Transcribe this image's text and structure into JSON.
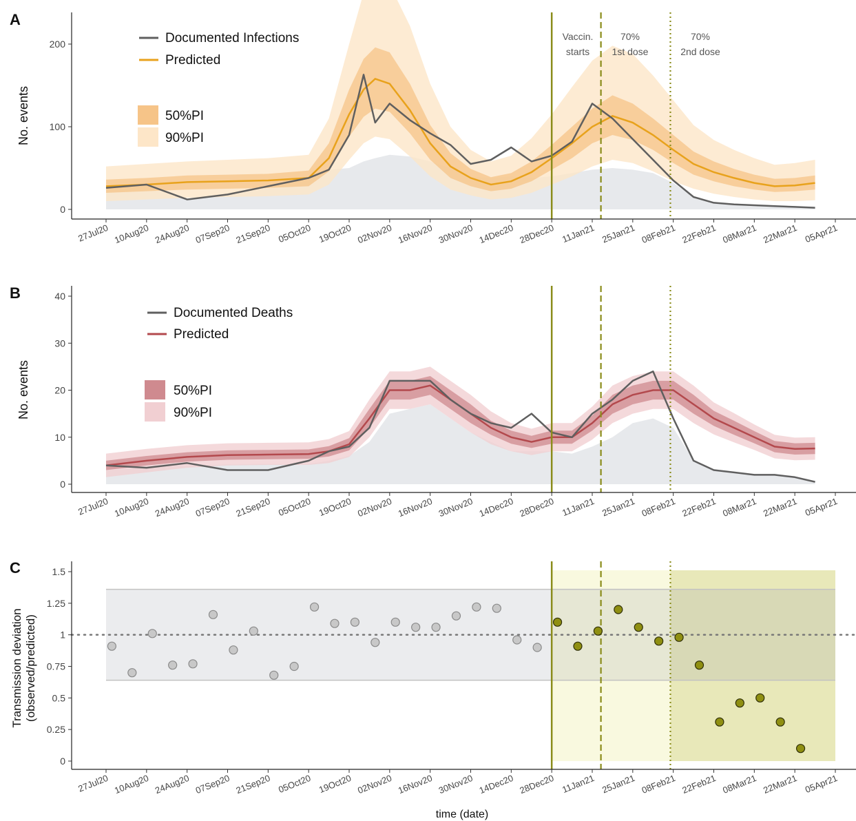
{
  "colors": {
    "observed": "#5f5f5f",
    "predicted_A": "#e8a21c",
    "pi50_A": "#f6c488",
    "pi90_A": "#fde6c8",
    "predicted_B": "#b3494d",
    "pi50_B": "#cf8a8f",
    "pi90_B": "#f1cfd2",
    "observed_area": "#e7e9ec",
    "vaccine": "#8a8c1a",
    "point_pre": "#c8c8c8",
    "point_post": "#8f8f12"
  },
  "x_axis": {
    "ticks": [
      "27Jul20",
      "10Aug20",
      "24Aug20",
      "07Sep20",
      "21Sep20",
      "05Oct20",
      "19Oct20",
      "02Nov20",
      "16Nov20",
      "30Nov20",
      "14Dec20",
      "28Dec20",
      "11Jan21",
      "25Jan21",
      "08Feb21",
      "22Feb21",
      "08Mar21",
      "22Mar21",
      "05Apr21"
    ],
    "title": "time (date)"
  },
  "vaccine_lines": [
    {
      "date": "2020-12-28",
      "style": "solid"
    },
    {
      "date": "2021-01-14",
      "style": "dashed"
    },
    {
      "date": "2021-02-07",
      "style": "dotted"
    }
  ],
  "panels": {
    "A": {
      "letter": "A",
      "ylabel": "No. events",
      "legend": {
        "observed": "Documented Infections",
        "predicted": "Predicted",
        "pi50": "50%PI",
        "pi90": "90%PI"
      },
      "annotations": {
        "vacc_line1": "Vaccin.",
        "vacc_line2": "starts",
        "first_line1": "70%",
        "first_line2": "1st dose",
        "second_line1": "70%",
        "second_line2": "2nd dose"
      }
    },
    "B": {
      "letter": "B",
      "ylabel": "No. events",
      "legend": {
        "observed": "Documented Deaths",
        "predicted": "Predicted",
        "pi50": "50%PI",
        "pi90": "90%PI"
      }
    },
    "C": {
      "letter": "C",
      "ylabel_line1": "Transmission deviation",
      "ylabel_line2": "(observed/predicted)"
    }
  },
  "chart_data": [
    {
      "type": "area",
      "panel": "A",
      "ylabel": "No. events",
      "ylim": [
        0,
        220
      ],
      "yticks": [
        0,
        100,
        200
      ],
      "dates": [
        "2020-07-27",
        "2020-08-10",
        "2020-08-24",
        "2020-09-07",
        "2020-09-21",
        "2020-10-05",
        "2020-10-12",
        "2020-10-19",
        "2020-10-24",
        "2020-10-28",
        "2020-11-02",
        "2020-11-09",
        "2020-11-16",
        "2020-11-23",
        "2020-11-30",
        "2020-12-07",
        "2020-12-14",
        "2020-12-21",
        "2020-12-28",
        "2021-01-04",
        "2021-01-11",
        "2021-01-18",
        "2021-01-25",
        "2021-02-01",
        "2021-02-08",
        "2021-02-15",
        "2021-02-22",
        "2021-03-01",
        "2021-03-08",
        "2021-03-15",
        "2021-03-22",
        "2021-03-29"
      ],
      "series": [
        {
          "name": "Documented Infections",
          "values": [
            26,
            30,
            12,
            18,
            28,
            38,
            48,
            90,
            163,
            105,
            128,
            108,
            92,
            78,
            55,
            60,
            75,
            58,
            65,
            82,
            128,
            110,
            85,
            60,
            35,
            15,
            8,
            6,
            5,
            4,
            3,
            2
          ]
        },
        {
          "name": "Predicted",
          "values": [
            28,
            30,
            33,
            34,
            35,
            38,
            62,
            115,
            145,
            158,
            152,
            120,
            80,
            52,
            38,
            30,
            34,
            45,
            62,
            80,
            100,
            113,
            105,
            90,
            72,
            55,
            45,
            38,
            32,
            28,
            29,
            32
          ]
        }
      ],
      "pi50_lower": [
        20,
        22,
        24,
        25,
        26,
        28,
        46,
        88,
        112,
        122,
        118,
        92,
        60,
        38,
        28,
        22,
        25,
        34,
        48,
        62,
        80,
        90,
        84,
        72,
        56,
        42,
        34,
        28,
        24,
        21,
        22,
        24
      ],
      "pi50_upper": [
        36,
        38,
        41,
        42,
        43,
        47,
        80,
        145,
        182,
        196,
        190,
        152,
        102,
        68,
        49,
        39,
        44,
        58,
        78,
        100,
        122,
        138,
        128,
        110,
        90,
        70,
        58,
        49,
        42,
        37,
        38,
        41
      ],
      "pi90_lower": [
        10,
        12,
        14,
        15,
        16,
        18,
        30,
        60,
        80,
        88,
        85,
        64,
        40,
        24,
        17,
        12,
        14,
        20,
        30,
        40,
        52,
        60,
        56,
        46,
        34,
        25,
        19,
        15,
        12,
        10,
        10,
        11
      ],
      "pi90_upper": [
        52,
        55,
        58,
        60,
        62,
        66,
        110,
        200,
        262,
        280,
        272,
        222,
        152,
        100,
        72,
        58,
        65,
        86,
        115,
        148,
        180,
        198,
        188,
        162,
        132,
        102,
        84,
        72,
        62,
        54,
        56,
        60
      ],
      "observed_area": [
        26,
        30,
        12,
        18,
        28,
        38,
        48,
        50,
        58,
        62,
        66,
        64,
        58,
        50,
        40,
        38,
        40,
        38,
        40,
        44,
        48,
        50,
        48,
        44,
        32,
        15,
        8,
        6,
        5,
        4,
        3,
        2
      ]
    },
    {
      "type": "area",
      "panel": "B",
      "ylabel": "No. events",
      "ylim": [
        0,
        40
      ],
      "yticks": [
        0,
        10,
        20,
        30,
        40
      ],
      "dates": [
        "2020-07-27",
        "2020-08-10",
        "2020-08-24",
        "2020-09-07",
        "2020-09-21",
        "2020-10-05",
        "2020-10-12",
        "2020-10-19",
        "2020-10-26",
        "2020-11-02",
        "2020-11-09",
        "2020-11-16",
        "2020-11-23",
        "2020-11-30",
        "2020-12-07",
        "2020-12-14",
        "2020-12-21",
        "2020-12-28",
        "2021-01-04",
        "2021-01-11",
        "2021-01-18",
        "2021-01-25",
        "2021-02-01",
        "2021-02-08",
        "2021-02-15",
        "2021-02-22",
        "2021-03-01",
        "2021-03-08",
        "2021-03-15",
        "2021-03-22",
        "2021-03-29"
      ],
      "series": [
        {
          "name": "Documented Deaths",
          "values": [
            4,
            3.5,
            4.5,
            3,
            3,
            5,
            7,
            8,
            12,
            22,
            22,
            22,
            18,
            15,
            13,
            12,
            15,
            11,
            10,
            15,
            18,
            22,
            24,
            14,
            5,
            3,
            2.5,
            2,
            2,
            1.5,
            0.5
          ]
        },
        {
          "name": "Predicted",
          "values": [
            4,
            5,
            5.8,
            6.2,
            6.3,
            6.4,
            7,
            8.5,
            14,
            20,
            20,
            21,
            18,
            15,
            12,
            10,
            9,
            10,
            10,
            13,
            17,
            19,
            20,
            20,
            17,
            14,
            12,
            10,
            8,
            7.5,
            7.6
          ]
        }
      ],
      "pi50_lower": [
        3,
        4,
        4.8,
        5.2,
        5.3,
        5.4,
        5.9,
        7.2,
        12,
        18,
        18,
        19,
        16,
        13,
        10.5,
        8.6,
        7.7,
        8.6,
        8.6,
        11.4,
        15,
        17,
        18,
        18,
        15,
        12.4,
        10.5,
        8.7,
        6.8,
        6.3,
        6.4
      ],
      "pi50_upper": [
        5,
        6,
        6.8,
        7.2,
        7.3,
        7.4,
        8.1,
        9.8,
        16,
        22,
        22,
        23,
        20,
        17,
        13.5,
        11.4,
        10.3,
        11.4,
        11.4,
        14.6,
        19,
        21,
        22,
        22,
        19,
        15.6,
        13.5,
        11.3,
        9.2,
        8.7,
        8.8
      ],
      "pi90_lower": [
        1.5,
        2.5,
        3.5,
        4,
        4.1,
        4.1,
        4.5,
        5.8,
        10,
        16,
        16,
        17,
        14,
        11,
        8.5,
        7,
        6.2,
        7,
        7,
        9.5,
        13,
        15,
        16,
        16,
        13,
        10.6,
        8.9,
        7.3,
        5.5,
        5.1,
        5.2
      ],
      "pi90_upper": [
        6.5,
        7.5,
        8.3,
        8.7,
        8.8,
        8.9,
        9.6,
        11.3,
        18,
        24,
        24,
        25,
        22,
        19,
        15.5,
        13,
        11.8,
        13,
        13,
        16.5,
        21,
        23,
        24,
        24,
        21,
        17.4,
        15.1,
        12.7,
        10.5,
        9.9,
        10
      ],
      "observed_area": [
        3,
        3.5,
        4,
        4.2,
        4.3,
        4.3,
        5,
        6,
        9,
        15,
        16,
        17,
        14,
        11,
        9,
        7,
        7,
        7,
        6.5,
        8,
        10,
        13,
        14,
        12,
        5,
        3,
        2.5,
        2,
        2,
        1.5,
        0.5
      ]
    },
    {
      "type": "scatter",
      "panel": "C",
      "ylabel": "Transmission deviation (observed/predicted)",
      "ylim": [
        0,
        1.5
      ],
      "yticks": [
        0,
        0.25,
        0.5,
        0.75,
        1,
        1.25,
        1.5
      ],
      "ytick_labels": [
        "0",
        "0.25",
        "0.5",
        "0.75",
        "1",
        "1.25",
        "1.5"
      ],
      "band": [
        0.64,
        1.36
      ],
      "reference_line": 1,
      "series": [
        {
          "group": "pre-vaccination",
          "x": [
            "2020-07-29",
            "2020-08-05",
            "2020-08-12",
            "2020-08-19",
            "2020-08-26",
            "2020-09-02",
            "2020-09-09",
            "2020-09-16",
            "2020-09-23",
            "2020-09-30",
            "2020-10-07",
            "2020-10-14",
            "2020-10-21",
            "2020-10-28",
            "2020-11-04",
            "2020-11-11",
            "2020-11-18",
            "2020-11-25",
            "2020-12-02",
            "2020-12-09",
            "2020-12-16",
            "2020-12-23"
          ],
          "y": [
            0.91,
            0.7,
            1.01,
            0.76,
            0.77,
            1.16,
            0.88,
            1.03,
            0.68,
            0.75,
            1.22,
            1.09,
            1.1,
            0.94,
            1.1,
            1.06,
            1.06,
            1.15,
            1.22,
            1.21,
            0.96,
            0.9
          ]
        },
        {
          "group": "post-vaccination",
          "x": [
            "2020-12-30",
            "2021-01-06",
            "2021-01-13",
            "2021-01-20",
            "2021-01-27",
            "2021-02-03",
            "2021-02-10",
            "2021-02-17",
            "2021-02-24",
            "2021-03-03",
            "2021-03-10",
            "2021-03-17",
            "2021-03-24"
          ],
          "y": [
            1.1,
            0.91,
            1.03,
            1.2,
            1.06,
            0.95,
            0.98,
            0.76,
            0.31,
            0.46,
            0.5,
            0.31,
            0.1
          ]
        }
      ],
      "xlabel": "time (date)"
    }
  ]
}
